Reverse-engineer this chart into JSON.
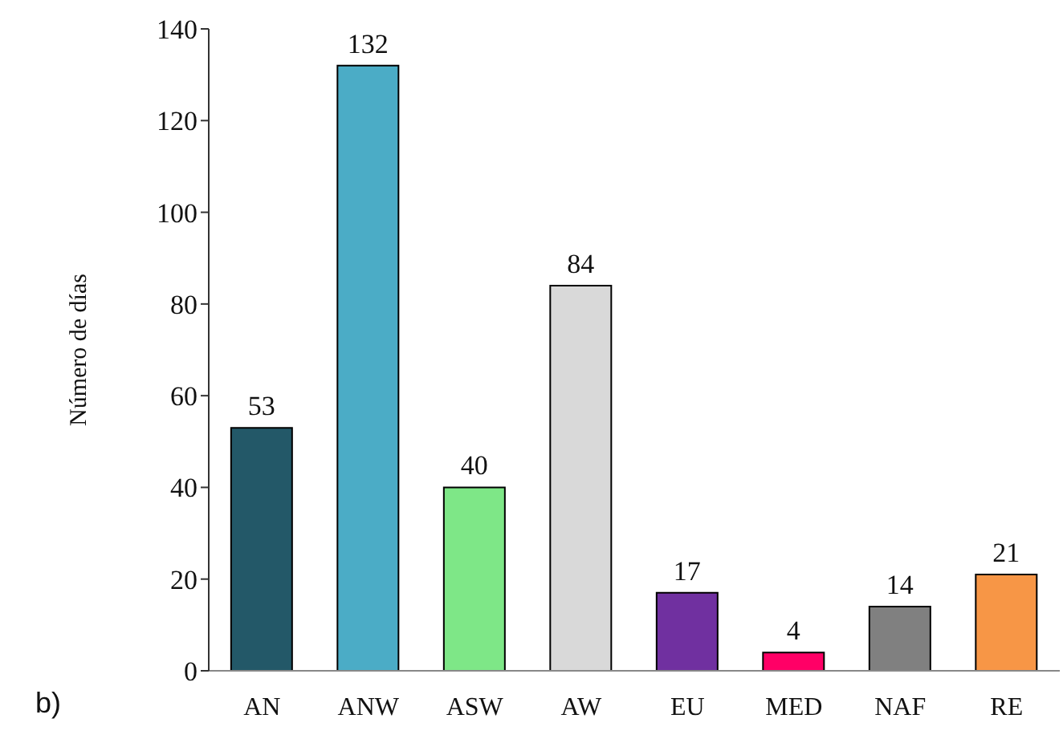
{
  "chart_data": {
    "type": "bar",
    "ylabel": "Número de días",
    "categories": [
      "AN",
      "ANW",
      "ASW",
      "AW",
      "EU",
      "MED",
      "NAF",
      "RE"
    ],
    "values": [
      53,
      132,
      40,
      84,
      17,
      4,
      14,
      21
    ],
    "colors": [
      "#235868",
      "#4bacc6",
      "#7ee787",
      "#d9d9d9",
      "#7030a0",
      "#ff0066",
      "#808080",
      "#f79646"
    ],
    "ylim": [
      0,
      140
    ],
    "yticks": [
      0,
      20,
      40,
      60,
      80,
      100,
      120,
      140
    ],
    "grid": false,
    "data_labels": true,
    "legend": false,
    "annotations": [
      "b)"
    ]
  }
}
